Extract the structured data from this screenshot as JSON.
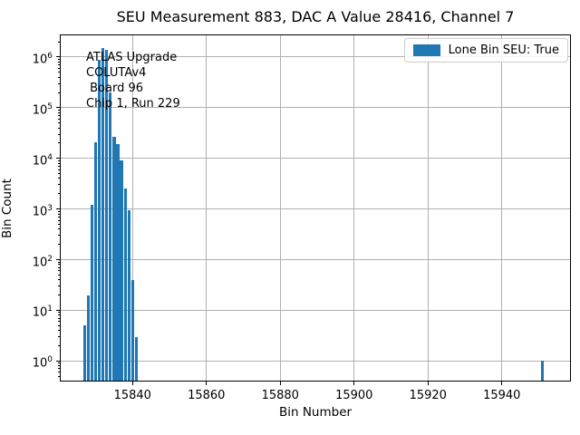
{
  "figure": {
    "title": "SEU Measurement 883, DAC A Value 28416, Channel 7",
    "xlabel": "Bin Number",
    "ylabel": "Bin Count",
    "annotation_text": "ATLAS Upgrade\nCOLUTAv4\n Board 96\nChip 1, Run 229",
    "legend": {
      "label": "Lone Bin SEU: True",
      "swatch_color": "#1f77b4"
    }
  },
  "chart_data": {
    "type": "bar",
    "title": "SEU Measurement 883, DAC A Value 28416, Channel 7",
    "xlabel": "Bin Number",
    "ylabel": "Bin Count",
    "yscale": "log",
    "grid": true,
    "legend_position": "upper right",
    "legend_entries": [
      "Lone Bin SEU: True"
    ],
    "bar_color": "#1f77b4",
    "grid_color": "#b0b0b0",
    "xlim": [
      15820.3,
      15958.7
    ],
    "ylim": [
      0.4,
      2800000
    ],
    "x_ticks": [
      15840,
      15860,
      15880,
      15900,
      15920,
      15940
    ],
    "y_tick_exponents": [
      0,
      1,
      2,
      3,
      4,
      5,
      6
    ],
    "bins": [
      15827,
      15828,
      15829,
      15830,
      15831,
      15832,
      15833,
      15834,
      15835,
      15836,
      15837,
      15838,
      15839,
      15840,
      15841,
      15951
    ],
    "counts": [
      5,
      20,
      1200,
      21000,
      900000,
      1500000,
      1400000,
      200000,
      27000,
      19000,
      9000,
      2500,
      950,
      40,
      3,
      1
    ],
    "lone_bin": 15951,
    "lone_bin_count": 1,
    "annotation": "ATLAS Upgrade\nCOLUTAv4\n Board 96\nChip 1, Run 229"
  }
}
